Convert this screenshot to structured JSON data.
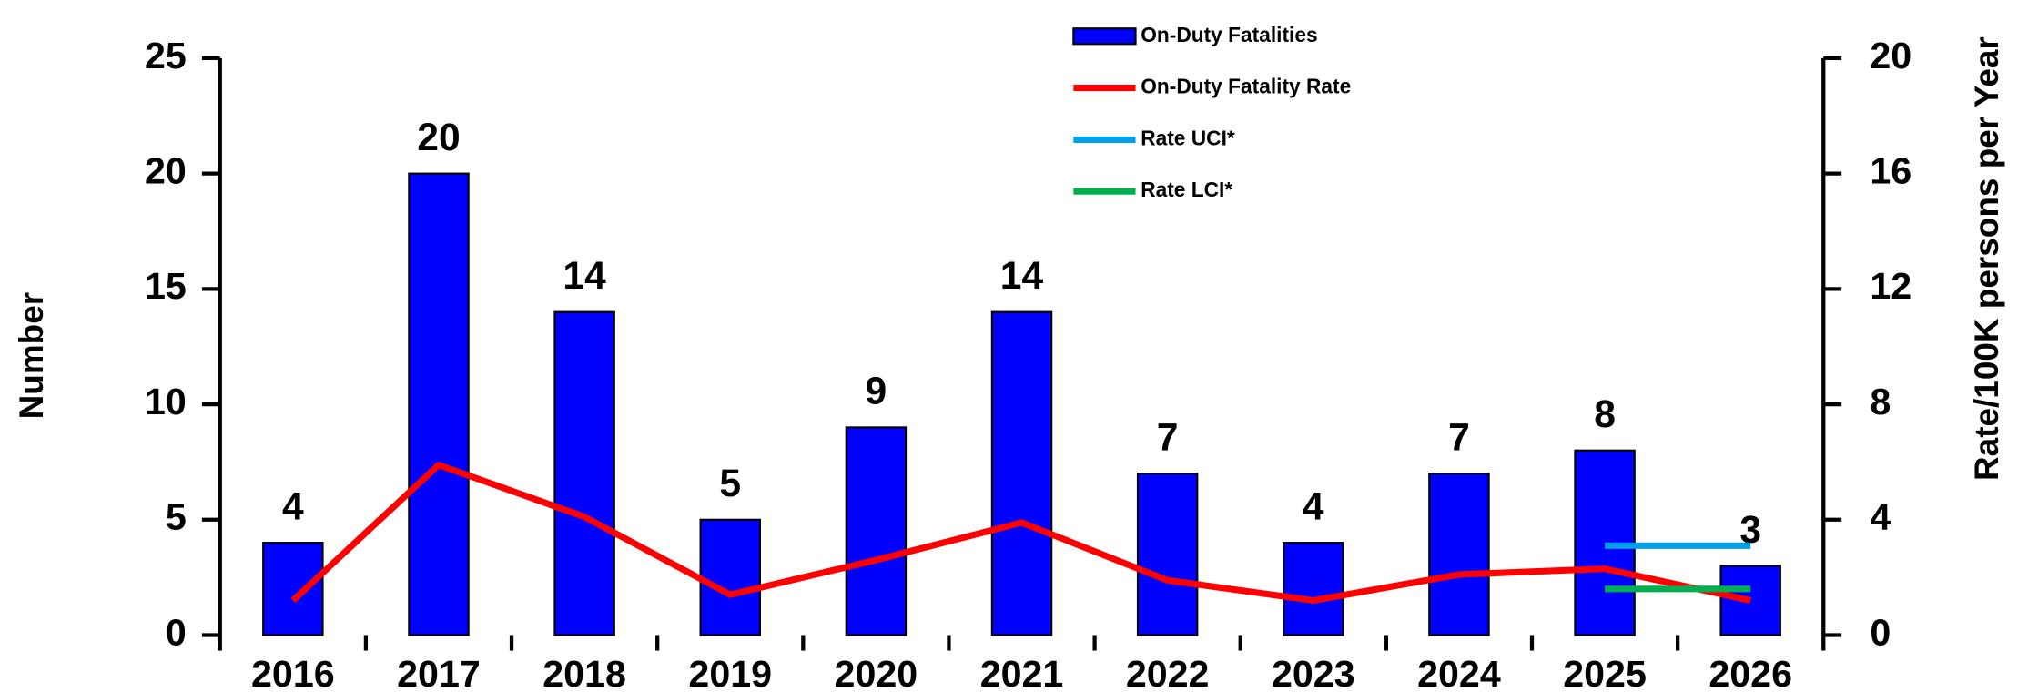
{
  "chart_data": {
    "type": "bar",
    "categories": [
      "2016",
      "2017",
      "2018",
      "2019",
      "2020",
      "2021",
      "2022",
      "2023",
      "2024",
      "2025",
      "2026"
    ],
    "series": [
      {
        "name": "On-Duty Fatalities",
        "color": "#0000ff",
        "values": [
          4,
          20,
          14,
          5,
          9,
          14,
          7,
          4,
          7,
          8,
          3
        ]
      },
      {
        "name": "On-Duty Fatality Rate",
        "color": "#ff0000",
        "axis": "y2",
        "values": [
          1.2,
          5.9,
          4.1,
          1.4,
          2.6,
          3.9,
          1.9,
          1.2,
          2.1,
          2.3,
          1.2
        ]
      },
      {
        "name": "Rate UCI*",
        "color": "#00a0e8",
        "axis": "y2",
        "values": [
          null,
          null,
          null,
          null,
          null,
          null,
          null,
          null,
          null,
          3.1,
          3.1
        ]
      },
      {
        "name": "Rate LCI*",
        "color": "#00b050",
        "axis": "y2",
        "values": [
          null,
          null,
          null,
          null,
          null,
          null,
          null,
          null,
          null,
          1.6,
          1.6
        ]
      }
    ],
    "ylabel": "Number",
    "y2label": "Rate/100K persons per Year",
    "ylim": [
      0,
      25
    ],
    "yticks": [
      0,
      5,
      10,
      15,
      20,
      25
    ],
    "y2lim": [
      0,
      20
    ],
    "y2ticks": [
      0,
      4,
      8,
      12,
      16,
      20
    ],
    "legend": "top"
  }
}
